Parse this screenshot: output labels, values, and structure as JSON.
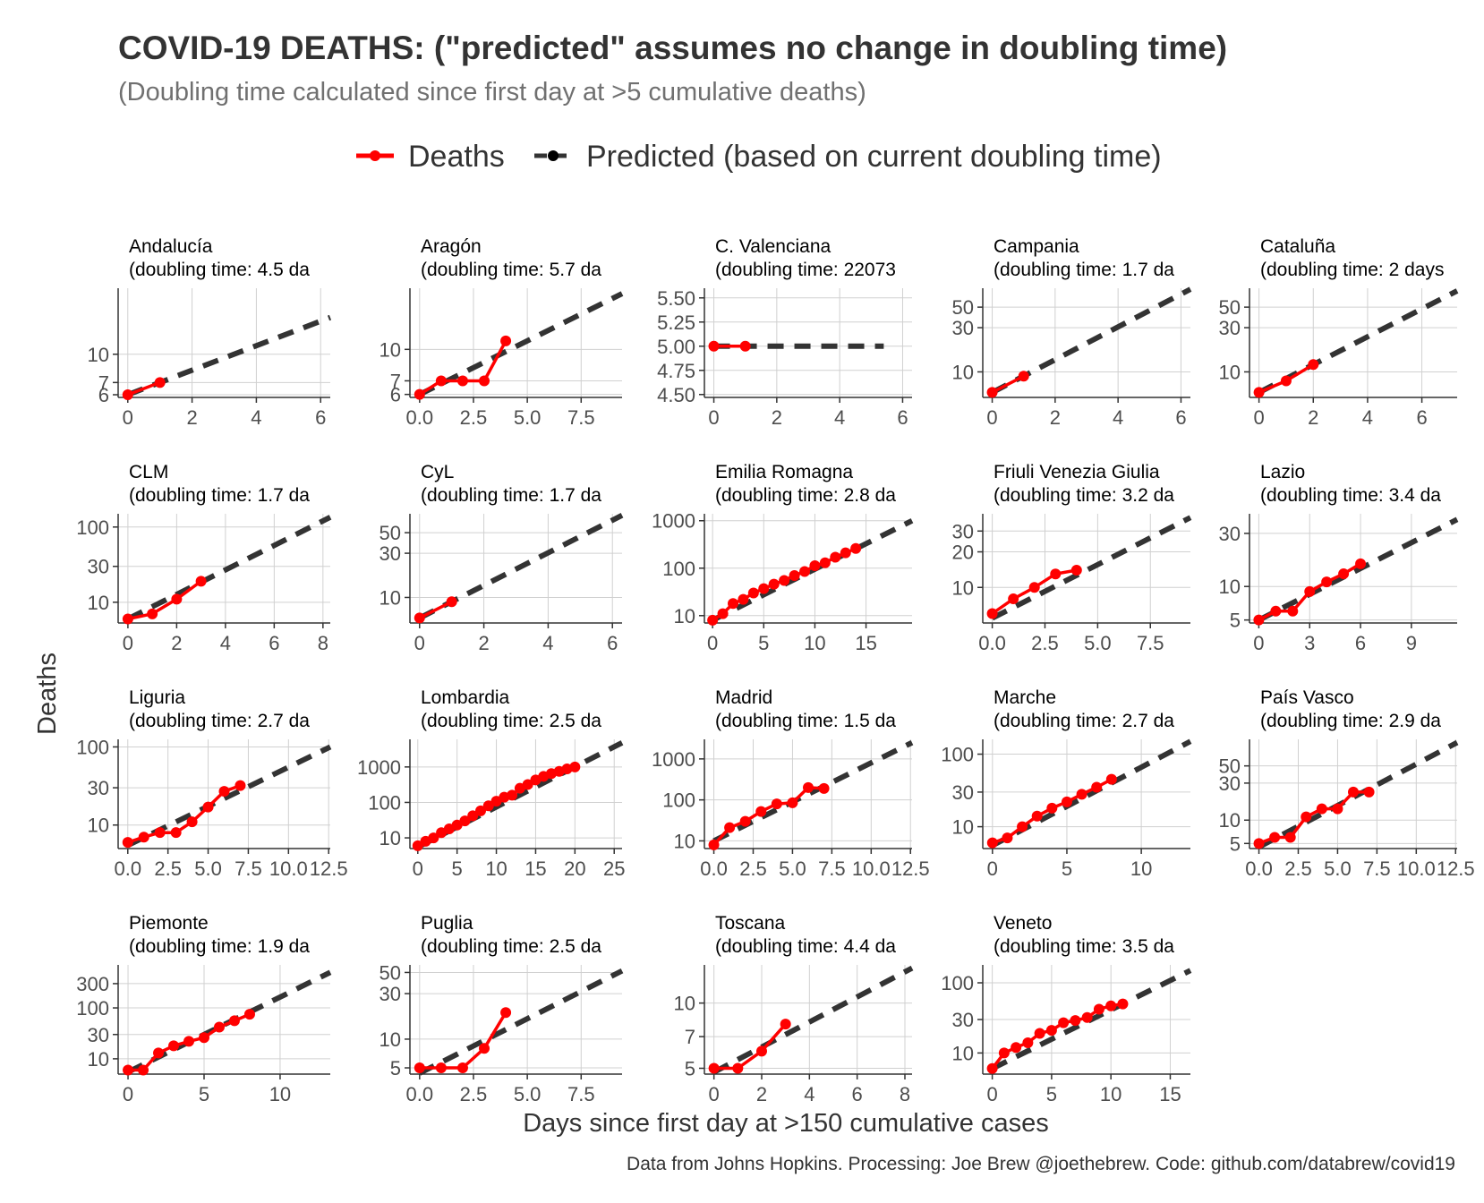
{
  "title": "COVID-19 DEATHS: (\"predicted\" assumes no change in doubling time)",
  "subtitle": "(Doubling time calculated since first day at >5 cumulative deaths)",
  "legend": {
    "position": "top",
    "items": [
      {
        "label": "Deaths",
        "color": "#ff0000",
        "style": "solid"
      },
      {
        "label": "Predicted (based on current doubling time)",
        "color": "#333333",
        "style": "dashed"
      }
    ]
  },
  "xlabel": "Days since first day at >150 cumulative cases",
  "ylabel": "Deaths",
  "caption": "Data from Johns Hopkins. Processing: Joe Brew @joethebrew. Code: github.com/databrew/covid19",
  "colors": {
    "deaths": "#ff0000",
    "predicted": "#333333",
    "grid": "#d0d0d0",
    "text": "#333333",
    "subtitle": "#707070"
  },
  "chart_data": [
    {
      "type": "line",
      "panel": "Andalucía",
      "subtitle": "(doubling time: 4.5 da",
      "scale": "log",
      "xlim": [
        -0.3,
        6.3
      ],
      "xticks": [
        "0",
        "2",
        "4",
        "6"
      ],
      "xtick_values": [
        0,
        2,
        4,
        6
      ],
      "ylim": [
        5.8,
        23
      ],
      "yticks": [
        "6",
        "7",
        "10"
      ],
      "ytick_values": [
        6,
        7,
        10
      ],
      "deaths": {
        "x": [
          0,
          1
        ],
        "y": [
          6,
          7
        ]
      },
      "predicted": {
        "x": [
          0,
          6.3
        ],
        "y": [
          6,
          15.9
        ]
      }
    },
    {
      "type": "line",
      "panel": "Aragón",
      "subtitle": "(doubling time: 5.7 da",
      "scale": "log",
      "xlim": [
        -0.45,
        9.4
      ],
      "xticks": [
        "0.0",
        "2.5",
        "5.0",
        "7.5"
      ],
      "xtick_values": [
        0,
        2.5,
        5,
        7.5
      ],
      "ylim": [
        5.8,
        20
      ],
      "yticks": [
        "6",
        "7",
        "10"
      ],
      "ytick_values": [
        6,
        7,
        10
      ],
      "deaths": {
        "x": [
          0,
          1,
          2,
          3,
          4
        ],
        "y": [
          6,
          7,
          7,
          7,
          11
        ]
      },
      "predicted": {
        "x": [
          0,
          9.4
        ],
        "y": [
          6,
          18.8
        ]
      }
    },
    {
      "type": "line",
      "panel": "C. Valenciana",
      "subtitle": "(doubling time: 22073",
      "scale": "linear",
      "xlim": [
        -0.3,
        6.3
      ],
      "xticks": [
        "0",
        "2",
        "4",
        "6"
      ],
      "xtick_values": [
        0,
        2,
        4,
        6
      ],
      "ylim": [
        4.47,
        5.6
      ],
      "yticks": [
        "4.50",
        "4.75",
        "5.00",
        "5.25",
        "5.50"
      ],
      "ytick_values": [
        4.5,
        4.75,
        5,
        5.25,
        5.5
      ],
      "deaths": {
        "x": [
          0,
          1
        ],
        "y": [
          5,
          5
        ]
      },
      "predicted": {
        "x": [
          0,
          5.4
        ],
        "y": [
          5,
          5
        ]
      }
    },
    {
      "type": "line",
      "panel": "Campania",
      "subtitle": "(doubling time: 1.7 da",
      "scale": "log",
      "xlim": [
        -0.3,
        6.3
      ],
      "xticks": [
        "0",
        "2",
        "4",
        "6"
      ],
      "xtick_values": [
        0,
        2,
        4,
        6
      ],
      "ylim": [
        5.3,
        80
      ],
      "yticks": [
        "10",
        "30",
        "50"
      ],
      "ytick_values": [
        10,
        30,
        50
      ],
      "deaths": {
        "x": [
          0,
          1
        ],
        "y": [
          6,
          9
        ]
      },
      "predicted": {
        "x": [
          0,
          6.3
        ],
        "y": [
          6,
          78
        ]
      }
    },
    {
      "type": "line",
      "panel": "Cataluña",
      "subtitle": "(doubling time: 2 days",
      "scale": "log",
      "xlim": [
        -0.35,
        7.3
      ],
      "xticks": [
        "0",
        "2",
        "4",
        "6"
      ],
      "xtick_values": [
        0,
        2,
        4,
        6
      ],
      "ylim": [
        5.3,
        80
      ],
      "yticks": [
        "10",
        "30",
        "50"
      ],
      "ytick_values": [
        10,
        30,
        50
      ],
      "deaths": {
        "x": [
          0,
          1,
          2
        ],
        "y": [
          6,
          8,
          12
        ]
      },
      "predicted": {
        "x": [
          0,
          7.3
        ],
        "y": [
          6,
          75
        ]
      }
    },
    {
      "type": "line",
      "panel": "CLM",
      "subtitle": "(doubling time: 1.7 da",
      "scale": "log",
      "xlim": [
        -0.4,
        8.3
      ],
      "xticks": [
        "0",
        "2",
        "4",
        "6",
        "8"
      ],
      "xtick_values": [
        0,
        2,
        4,
        6,
        8
      ],
      "ylim": [
        5.3,
        150
      ],
      "yticks": [
        "10",
        "30",
        "100"
      ],
      "ytick_values": [
        10,
        30,
        100
      ],
      "deaths": {
        "x": [
          0,
          1,
          2,
          3
        ],
        "y": [
          6,
          7,
          11,
          19
        ]
      },
      "predicted": {
        "x": [
          0,
          8.3
        ],
        "y": [
          6,
          135
        ]
      }
    },
    {
      "type": "line",
      "panel": "CyL",
      "subtitle": "(doubling time: 1.7 da",
      "scale": "log",
      "xlim": [
        -0.3,
        6.3
      ],
      "xticks": [
        "0",
        "2",
        "4",
        "6"
      ],
      "xtick_values": [
        0,
        2,
        4,
        6
      ],
      "ylim": [
        5.3,
        80
      ],
      "yticks": [
        "10",
        "30",
        "50"
      ],
      "ytick_values": [
        10,
        30,
        50
      ],
      "deaths": {
        "x": [
          0,
          1
        ],
        "y": [
          6,
          9
        ]
      },
      "predicted": {
        "x": [
          0,
          6.3
        ],
        "y": [
          6,
          77
        ]
      }
    },
    {
      "type": "line",
      "panel": "Emilia Romagna",
      "subtitle": "(doubling time: 2.8 da",
      "scale": "log",
      "xlim": [
        -0.8,
        19.5
      ],
      "xticks": [
        "0",
        "5",
        "10",
        "15"
      ],
      "xtick_values": [
        0,
        5,
        10,
        15
      ],
      "ylim": [
        7,
        1400
      ],
      "yticks": [
        "10",
        "100",
        "1000"
      ],
      "ytick_values": [
        10,
        100,
        1000
      ],
      "deaths": {
        "x": [
          0,
          1,
          2,
          3,
          4,
          5,
          6,
          7,
          8,
          9,
          10,
          11,
          12,
          13,
          14
        ],
        "y": [
          8,
          11,
          18,
          22,
          30,
          37,
          46,
          55,
          70,
          85,
          113,
          130,
          170,
          210,
          260
        ]
      },
      "predicted": {
        "x": [
          0,
          19.5
        ],
        "y": [
          8,
          1000
        ]
      }
    },
    {
      "type": "line",
      "panel": "Friuli Venezia Giulia",
      "subtitle": "(doubling time: 3.2 da",
      "scale": "log",
      "xlim": [
        -0.45,
        9.4
      ],
      "xticks": [
        "0.0",
        "2.5",
        "5.0",
        "7.5"
      ],
      "xtick_values": [
        0,
        2.5,
        5,
        7.5
      ],
      "ylim": [
        5,
        42
      ],
      "yticks": [
        "10",
        "20",
        "30"
      ],
      "ytick_values": [
        10,
        20,
        30
      ],
      "deaths": {
        "x": [
          0,
          1,
          2,
          3,
          4
        ],
        "y": [
          6,
          8,
          10,
          13,
          14
        ]
      },
      "predicted": {
        "x": [
          0,
          9.4
        ],
        "y": [
          5.5,
          39
        ]
      }
    },
    {
      "type": "line",
      "panel": "Lazio",
      "subtitle": "(doubling time: 3.4 da",
      "scale": "log",
      "xlim": [
        -0.55,
        11.7
      ],
      "xticks": [
        "0",
        "3",
        "6",
        "9"
      ],
      "xtick_values": [
        0,
        3,
        6,
        9
      ],
      "ylim": [
        4.7,
        45
      ],
      "yticks": [
        "5",
        "10",
        "30"
      ],
      "ytick_values": [
        5,
        10,
        30
      ],
      "deaths": {
        "x": [
          0,
          1,
          2,
          3,
          4,
          5,
          6
        ],
        "y": [
          5,
          6,
          6,
          9,
          11,
          13,
          16
        ]
      },
      "predicted": {
        "x": [
          0,
          11.7
        ],
        "y": [
          5,
          40
        ]
      }
    },
    {
      "type": "line",
      "panel": "Liguria",
      "subtitle": "(doubling time: 2.7 da",
      "scale": "log",
      "xlim": [
        -0.6,
        12.6
      ],
      "xticks": [
        "0.0",
        "2.5",
        "5.0",
        "7.5",
        "10.0",
        "12.5"
      ],
      "xtick_values": [
        0,
        2.5,
        5,
        7.5,
        10,
        12.5
      ],
      "ylim": [
        5,
        125
      ],
      "yticks": [
        "10",
        "30",
        "100"
      ],
      "ytick_values": [
        10,
        30,
        100
      ],
      "deaths": {
        "x": [
          0,
          1,
          2,
          3,
          4,
          5,
          6,
          7
        ],
        "y": [
          6,
          7,
          8,
          8,
          11,
          17,
          27,
          32
        ]
      },
      "predicted": {
        "x": [
          0,
          12.6
        ],
        "y": [
          5.5,
          100
        ]
      }
    },
    {
      "type": "line",
      "panel": "Lombardia",
      "subtitle": "(doubling time: 2.5 da",
      "scale": "log",
      "xlim": [
        -1.0,
        26.0
      ],
      "xticks": [
        "0",
        "5",
        "10",
        "15",
        "20",
        "25"
      ],
      "xtick_values": [
        0,
        5,
        10,
        15,
        20,
        25
      ],
      "ylim": [
        5,
        6000
      ],
      "yticks": [
        "10",
        "100",
        "1000"
      ],
      "ytick_values": [
        10,
        100,
        1000
      ],
      "deaths": {
        "x": [
          0,
          1,
          2,
          3,
          4,
          5,
          6,
          7,
          8,
          9,
          10,
          11,
          12,
          13,
          14,
          15,
          16,
          17,
          18,
          19,
          20
        ],
        "y": [
          6,
          8,
          10,
          14,
          18,
          23,
          30,
          42,
          58,
          80,
          108,
          140,
          160,
          250,
          320,
          430,
          540,
          650,
          750,
          880,
          1000
        ]
      },
      "predicted": {
        "x": [
          0,
          26
        ],
        "y": [
          5.5,
          4800
        ]
      }
    },
    {
      "type": "line",
      "panel": "Madrid",
      "subtitle": "(doubling time: 1.5 da",
      "scale": "log",
      "xlim": [
        -0.6,
        12.6
      ],
      "xticks": [
        "0.0",
        "2.5",
        "5.0",
        "7.5",
        "10.0",
        "12.5"
      ],
      "xtick_values": [
        0,
        2.5,
        5,
        7.5,
        10,
        12.5
      ],
      "ylim": [
        6.5,
        3000
      ],
      "yticks": [
        "10",
        "100",
        "1000"
      ],
      "ytick_values": [
        10,
        100,
        1000
      ],
      "deaths": {
        "x": [
          0,
          1,
          2,
          3,
          4,
          5,
          6,
          7
        ],
        "y": [
          8,
          21,
          30,
          52,
          80,
          85,
          200,
          190
        ]
      },
      "predicted": {
        "x": [
          0,
          12.6
        ],
        "y": [
          10,
          2500
        ]
      }
    },
    {
      "type": "line",
      "panel": "Marche",
      "subtitle": "(doubling time: 2.7 da",
      "scale": "log",
      "xlim": [
        -0.65,
        13.3
      ],
      "xticks": [
        "0",
        "5",
        "10"
      ],
      "xtick_values": [
        0,
        5,
        10
      ],
      "ylim": [
        5,
        160
      ],
      "yticks": [
        "10",
        "30",
        "100"
      ],
      "ytick_values": [
        10,
        30,
        100
      ],
      "deaths": {
        "x": [
          0,
          1,
          2,
          3,
          4,
          5,
          6,
          7,
          8
        ],
        "y": [
          6,
          7,
          10,
          14,
          18,
          22,
          28,
          35,
          45
        ]
      },
      "predicted": {
        "x": [
          0,
          13.3
        ],
        "y": [
          5.5,
          150
        ]
      }
    },
    {
      "type": "line",
      "panel": "País Vasco",
      "subtitle": "(doubling time: 2.9 da",
      "scale": "log",
      "xlim": [
        -0.6,
        12.6
      ],
      "xticks": [
        "0.0",
        "2.5",
        "5.0",
        "7.5",
        "10.0",
        "12.5"
      ],
      "xtick_values": [
        0,
        2.5,
        5,
        7.5,
        10,
        12.5
      ],
      "ylim": [
        4.3,
        110
      ],
      "yticks": [
        "5",
        "10",
        "30",
        "50"
      ],
      "ytick_values": [
        5,
        10,
        30,
        50
      ],
      "deaths": {
        "x": [
          0,
          1,
          2,
          3,
          4,
          5,
          6,
          7
        ],
        "y": [
          5,
          6,
          6,
          11,
          14,
          14,
          23,
          23
        ]
      },
      "predicted": {
        "x": [
          0,
          12.6
        ],
        "y": [
          4.5,
          100
        ]
      }
    },
    {
      "type": "line",
      "panel": "Piemonte",
      "subtitle": "(doubling time: 1.9 da",
      "scale": "log",
      "xlim": [
        -0.65,
        13.3
      ],
      "xticks": [
        "0",
        "5",
        "10"
      ],
      "xtick_values": [
        0,
        5,
        10
      ],
      "ylim": [
        5,
        700
      ],
      "yticks": [
        "10",
        "30",
        "100",
        "300"
      ],
      "ytick_values": [
        10,
        30,
        100,
        300
      ],
      "deaths": {
        "x": [
          0,
          1,
          2,
          3,
          4,
          5,
          6,
          7,
          8
        ],
        "y": [
          6,
          6,
          13,
          18,
          22,
          26,
          42,
          56,
          75
        ]
      },
      "predicted": {
        "x": [
          0,
          13.3
        ],
        "y": [
          5.5,
          500
        ]
      }
    },
    {
      "type": "line",
      "panel": "Puglia",
      "subtitle": "(doubling time: 2.5 da",
      "scale": "log",
      "xlim": [
        -0.45,
        9.4
      ],
      "xticks": [
        "0.0",
        "2.5",
        "5.0",
        "7.5"
      ],
      "xtick_values": [
        0,
        2.5,
        5,
        7.5
      ],
      "ylim": [
        4.3,
        60
      ],
      "yticks": [
        "5",
        "10",
        "30",
        "50"
      ],
      "ytick_values": [
        5,
        10,
        30,
        50
      ],
      "deaths": {
        "x": [
          0,
          1,
          2,
          3,
          4
        ],
        "y": [
          5,
          5,
          5,
          8,
          19
        ]
      },
      "predicted": {
        "x": [
          0,
          9.4
        ],
        "y": [
          4.4,
          52
        ]
      }
    },
    {
      "type": "line",
      "panel": "Toscana",
      "subtitle": "(doubling time: 4.4 da",
      "scale": "log",
      "xlim": [
        -0.4,
        8.3
      ],
      "xticks": [
        "0",
        "2",
        "4",
        "6",
        "8"
      ],
      "xtick_values": [
        0,
        2,
        4,
        6,
        8
      ],
      "ylim": [
        4.7,
        15
      ],
      "yticks": [
        "5",
        "7",
        "10"
      ],
      "ytick_values": [
        5,
        7,
        10
      ],
      "deaths": {
        "x": [
          0,
          1,
          2,
          3
        ],
        "y": [
          5,
          5,
          6,
          8
        ]
      },
      "predicted": {
        "x": [
          0,
          8.3
        ],
        "y": [
          4.8,
          14.5
        ]
      }
    },
    {
      "type": "line",
      "panel": "Veneto",
      "subtitle": "(doubling time: 3.5 da",
      "scale": "log",
      "xlim": [
        -0.8,
        16.7
      ],
      "xticks": [
        "0",
        "5",
        "10",
        "15"
      ],
      "xtick_values": [
        0,
        5,
        10,
        15
      ],
      "ylim": [
        5,
        180
      ],
      "yticks": [
        "10",
        "30",
        "100"
      ],
      "ytick_values": [
        10,
        30,
        100
      ],
      "deaths": {
        "x": [
          0,
          1,
          2,
          3,
          4,
          5,
          6,
          7,
          8,
          9,
          10,
          11
        ],
        "y": [
          6,
          10,
          12,
          14,
          19,
          21,
          27,
          29,
          32,
          42,
          47,
          50
        ]
      },
      "predicted": {
        "x": [
          0,
          16.7
        ],
        "y": [
          6,
          150
        ]
      }
    }
  ]
}
